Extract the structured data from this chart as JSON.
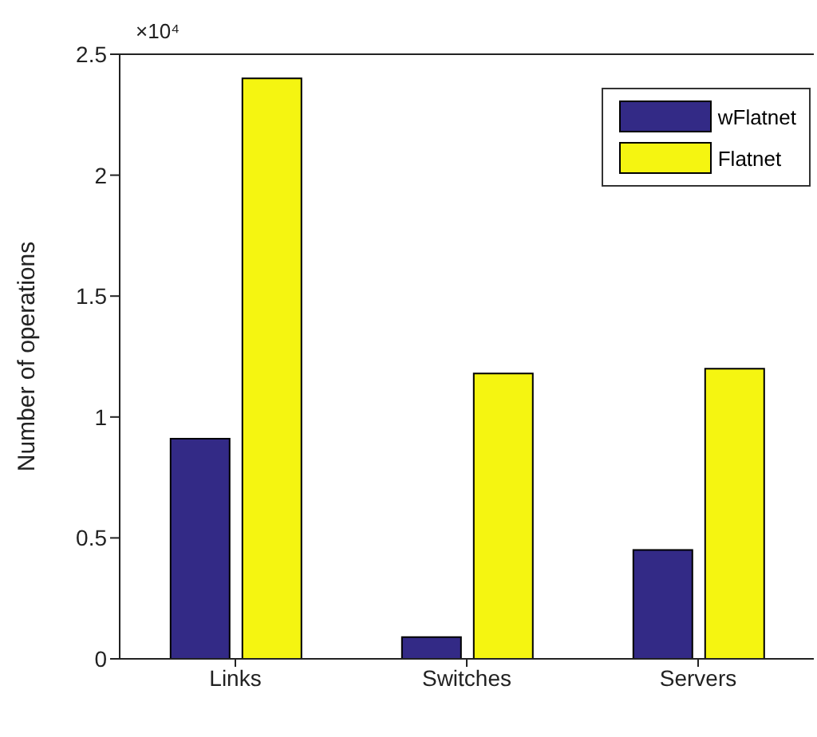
{
  "chart_data": {
    "type": "bar",
    "categories": [
      "Links",
      "Switches",
      "Servers"
    ],
    "series": [
      {
        "name": "wFlatnet",
        "color": "#332a86",
        "values": [
          0.91,
          0.09,
          0.45
        ]
      },
      {
        "name": "Flatnet",
        "color": "#f5f511",
        "values": [
          2.4,
          1.18,
          1.2
        ]
      }
    ],
    "ylabel": "Number of operations",
    "ylim": [
      0,
      2.5
    ],
    "yticks": [
      0,
      0.5,
      1,
      1.5,
      2,
      2.5
    ],
    "annotations": [
      "×10⁴"
    ],
    "legend": "top right",
    "grid": false
  }
}
